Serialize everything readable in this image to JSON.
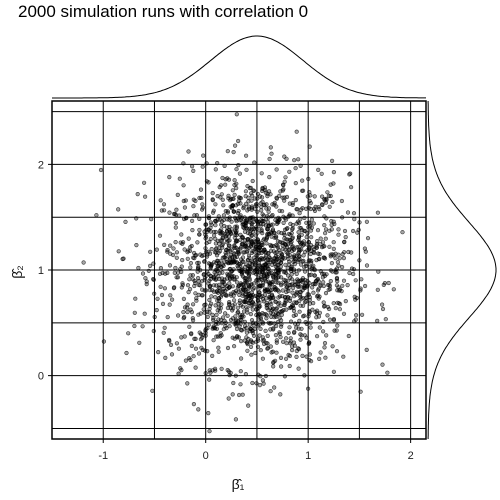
{
  "chart_data": {
    "type": "scatter",
    "title": "2000 simulation runs with correlation 0",
    "xlabel": "β̂₁",
    "ylabel": "β̂₂",
    "xlim": [
      -1.5,
      2.15
    ],
    "ylim": [
      -0.6,
      2.6
    ],
    "x_ticks": [
      -1,
      0,
      1,
      2
    ],
    "y_ticks": [
      0,
      1,
      2
    ],
    "grid": true,
    "marginal_density": {
      "top": "density of β̂₁",
      "right": "density of β̂₂"
    },
    "series": [
      {
        "n_points": 2000,
        "x_mean": 0.5,
        "x_sd": 0.45,
        "y_mean": 1.0,
        "y_sd": 0.45,
        "correlation": 0,
        "marker_color": "#000000"
      }
    ]
  }
}
